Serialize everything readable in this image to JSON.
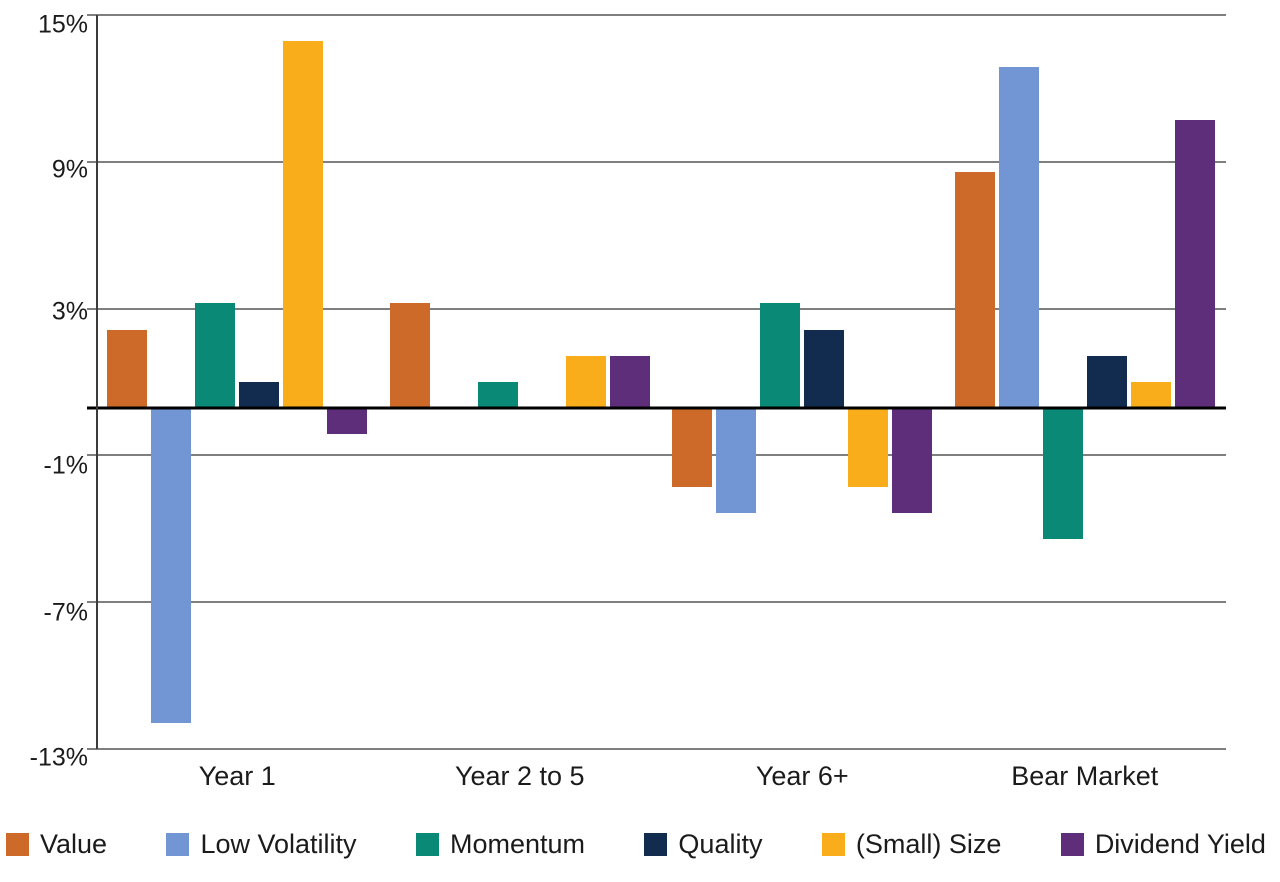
{
  "chart_data": {
    "type": "bar",
    "title": "",
    "unit": "%",
    "categories": [
      "Year 1",
      "Year 2 to 5",
      "Year 6+",
      "Bear Market"
    ],
    "series": [
      {
        "name": "Value",
        "color": "#CE6A29",
        "values": [
          3,
          4,
          -3,
          9
        ]
      },
      {
        "name": "Low Volatility",
        "color": "#7295D3",
        "values": [
          -12,
          0,
          -4,
          13
        ]
      },
      {
        "name": "Momentum",
        "color": "#0A8A76",
        "values": [
          4,
          1,
          4,
          -5
        ]
      },
      {
        "name": "Quality",
        "color": "#112C4E",
        "values": [
          1,
          0,
          3,
          2
        ]
      },
      {
        "name": "(Small) Size",
        "color": "#F9AD1B",
        "values": [
          14,
          2,
          -3,
          1
        ]
      },
      {
        "name": "Dividend Yield",
        "color": "#5E2E7B",
        "values": [
          -1,
          2,
          -4,
          11
        ]
      }
    ],
    "y_axis": {
      "tick_labels": [
        "15%",
        "9%",
        "3%",
        "-1%",
        "-7%",
        "-13%"
      ],
      "top_value": 15,
      "bottom_value": -13,
      "gridlines": true,
      "zero_line": true,
      "gridline_color": "#7f7f7f",
      "zero_line_color": "#000000"
    },
    "legend_position": "bottom"
  }
}
